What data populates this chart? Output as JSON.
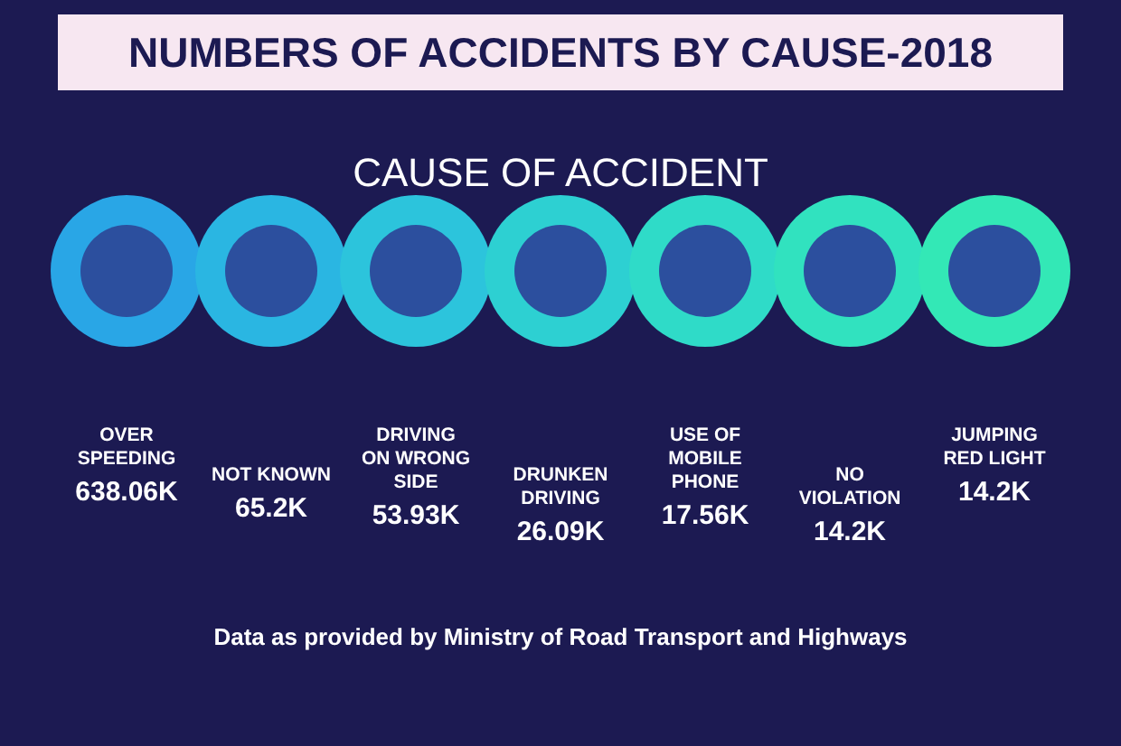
{
  "chart_data": {
    "type": "other",
    "title": "NUMBERS OF ACCIDENTS BY CAUSE-2018",
    "subtitle": "CAUSE OF ACCIDENT",
    "categories": [
      "OVER SPEEDING",
      "NOT KNOWN",
      "DRIVING ON WRONG SIDE",
      "DRUNKEN DRIVING",
      "USE OF MOBILE PHONE",
      "NO VIOLATION",
      "JUMPING RED LIGHT"
    ],
    "values": [
      638.06,
      65.2,
      53.93,
      26.09,
      17.56,
      14.2,
      14.2
    ],
    "value_labels": [
      "638.06K",
      "65.2K",
      "53.93K",
      "26.09K",
      "17.56K",
      "14.2K",
      "14.2K"
    ],
    "colors": [
      "#29a6e6",
      "#2ab6e2",
      "#2cc4dc",
      "#2dd0d2",
      "#2fdbc8",
      "#31e2bf",
      "#33e8b6"
    ],
    "annotations": [
      "Data as provided by Ministry of Road Transport and Highways"
    ]
  }
}
